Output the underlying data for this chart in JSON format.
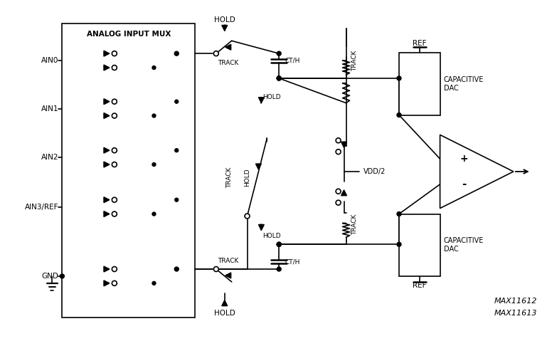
{
  "bg_color": "#ffffff",
  "line_color": "#000000",
  "fig_width": 7.69,
  "fig_height": 4.79,
  "labels": {
    "ain0": "AIN0",
    "ain1": "AIN1",
    "ain2": "AIN2",
    "ain3": "AIN3/REF",
    "gnd": "GND",
    "analog_mux": "ANALOG INPUT MUX",
    "hold_top": "HOLD",
    "hold_mid_top": "HOLD",
    "hold_mid": "HOLD",
    "hold_bot": "HOLD",
    "track_top_sw": "TRACK",
    "track_bot_sw": "TRACK",
    "track_mid_sw": "TRACK",
    "cth_top": "CT/H",
    "cth_bot": "CT/H",
    "track_res_top": "TRACK",
    "track_res_bot": "TRACK",
    "vdd2": "VDD/2",
    "cap_dac_top": "CAPACITIVE\nDAC",
    "cap_dac_bot": "CAPACITIVE\nDAC",
    "ref_top": "REF",
    "ref_bot": "REF",
    "plus": "+",
    "minus": "-",
    "model1": "MAX11612",
    "model2": "MAX11613"
  }
}
